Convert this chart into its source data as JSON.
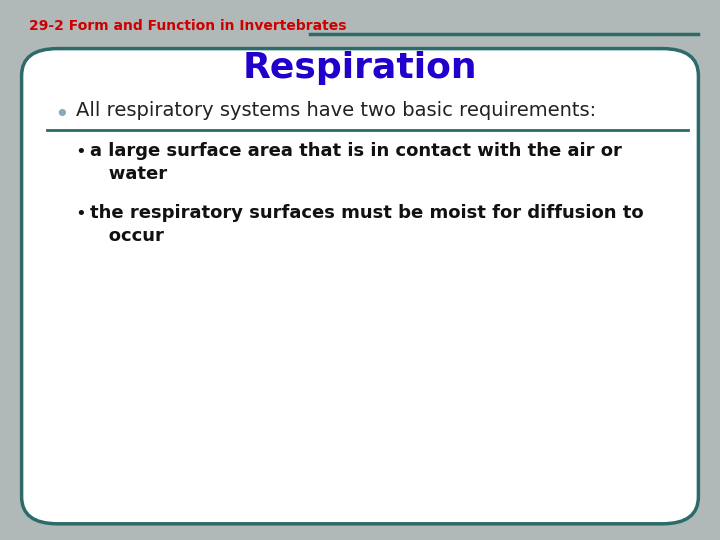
{
  "slide_title_label": "29-2 Form and Function in Invertebrates",
  "slide_title_color": "#cc0000",
  "slide_title_fontsize": 10,
  "heading": "Respiration",
  "heading_color": "#2200cc",
  "heading_fontsize": 26,
  "bullet1": "All respiratory systems have two basic requirements:",
  "bullet1_color": "#222222",
  "bullet1_fontsize": 14,
  "bullet1_dot_color": "#88aabb",
  "sub_bullet1_line1": "a large surface area that is in contact with the air or",
  "sub_bullet1_line2": "   water",
  "sub_bullet2_line1": "the respiratory surfaces must be moist for diffusion to",
  "sub_bullet2_line2": "   occur",
  "sub_bullet_color": "#111111",
  "sub_bullet_fontsize": 13,
  "box_edge_color": "#2d6b6b",
  "box_face_color": "#ffffff",
  "figure_bg": "#b0b8b8",
  "line_color": "#2d6b6b"
}
